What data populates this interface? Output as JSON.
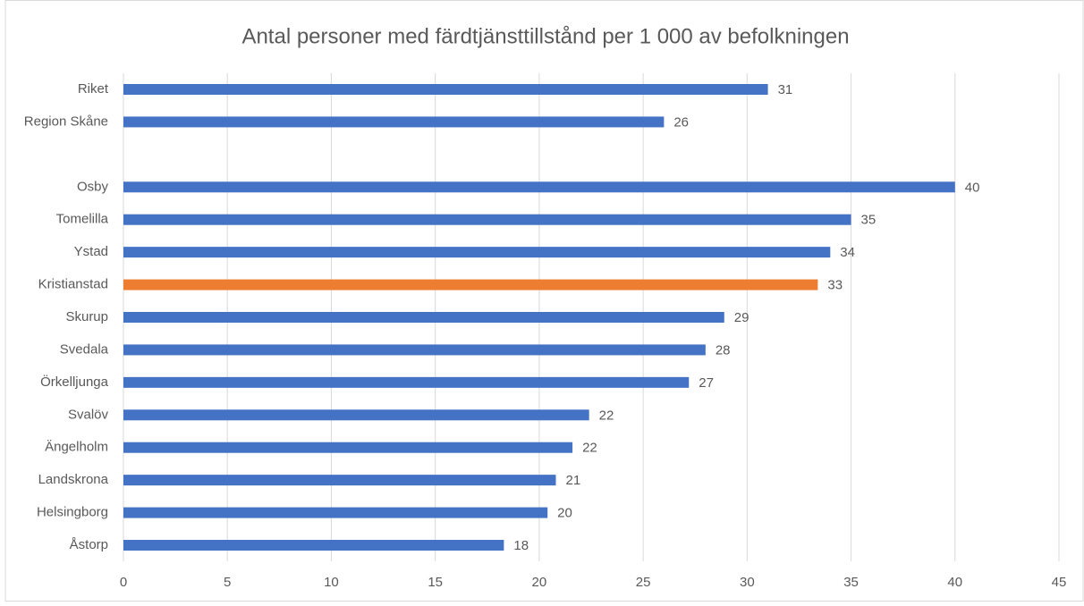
{
  "chart_data": {
    "type": "barh",
    "title": "Antal personer med färdtjänsttillstånd per 1 000 av befolkningen",
    "categories": [
      "Riket",
      "Region Skåne",
      null,
      "Osby",
      "Tomelilla",
      "Ystad",
      "Kristianstad",
      "Skurup",
      "Svedala",
      "Örkelljunga",
      "Svalöv",
      "Ängelholm",
      "Landskrona",
      "Helsingborg",
      "Åstorp"
    ],
    "values": [
      31,
      26,
      null,
      40,
      35,
      34,
      33.4,
      28.9,
      28,
      27.2,
      22.4,
      21.6,
      20.8,
      20.4,
      18.3
    ],
    "value_labels": [
      "31",
      "26",
      null,
      "40",
      "35",
      "34",
      "33",
      "29",
      "28",
      "27",
      "22",
      "22",
      "21",
      "20",
      "18"
    ],
    "colors": [
      "#4472c4",
      "#4472c4",
      null,
      "#4472c4",
      "#4472c4",
      "#4472c4",
      "#ed7d31",
      "#4472c4",
      "#4472c4",
      "#4472c4",
      "#4472c4",
      "#4472c4",
      "#4472c4",
      "#4472c4",
      "#4472c4"
    ],
    "xlim": [
      0,
      45
    ],
    "xticks": [
      0,
      5,
      10,
      15,
      20,
      25,
      30,
      35,
      40,
      45
    ],
    "grid": true
  }
}
